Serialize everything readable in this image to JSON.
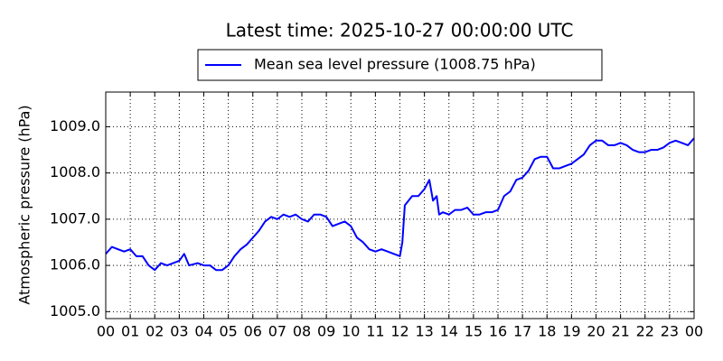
{
  "chart_data": {
    "type": "line",
    "title": "Latest time: 2025-10-27 00:00:00 UTC",
    "y_label": "Atmospheric pressure (hPa)",
    "x": [
      0,
      0.25,
      0.5,
      0.75,
      1,
      1.25,
      1.5,
      1.75,
      2,
      2.25,
      2.5,
      2.75,
      3,
      3.2,
      3.4,
      3.75,
      4,
      4.25,
      4.5,
      4.75,
      5,
      5.25,
      5.5,
      5.75,
      6,
      6.25,
      6.5,
      6.75,
      7,
      7.25,
      7.5,
      7.75,
      8,
      8.25,
      8.5,
      8.75,
      9,
      9.25,
      9.5,
      9.75,
      10,
      10.25,
      10.5,
      10.75,
      11,
      11.25,
      11.5,
      11.75,
      12,
      12.1,
      12.2,
      12.5,
      12.75,
      13,
      13.2,
      13.35,
      13.5,
      13.6,
      13.75,
      14,
      14.25,
      14.5,
      14.75,
      15,
      15.25,
      15.5,
      15.75,
      16,
      16.25,
      16.5,
      16.75,
      17,
      17.25,
      17.5,
      17.75,
      18,
      18.25,
      18.5,
      18.75,
      19,
      19.25,
      19.5,
      19.75,
      20,
      20.25,
      20.5,
      20.75,
      21,
      21.25,
      21.5,
      21.75,
      22,
      22.25,
      22.5,
      22.75,
      23,
      23.25,
      23.5,
      23.75,
      24
    ],
    "series": [
      {
        "name": "Mean sea level pressure (1008.75 hPa)",
        "color": "#0000ff",
        "values": [
          1006.25,
          1006.4,
          1006.35,
          1006.3,
          1006.35,
          1006.2,
          1006.2,
          1006.0,
          1005.9,
          1006.05,
          1006.0,
          1006.05,
          1006.1,
          1006.25,
          1006.0,
          1006.05,
          1006.0,
          1006.0,
          1005.9,
          1005.9,
          1006.0,
          1006.2,
          1006.35,
          1006.45,
          1006.6,
          1006.75,
          1006.95,
          1007.05,
          1007.0,
          1007.1,
          1007.05,
          1007.1,
          1007.0,
          1006.95,
          1007.1,
          1007.1,
          1007.05,
          1006.85,
          1006.9,
          1006.95,
          1006.85,
          1006.6,
          1006.5,
          1006.35,
          1006.3,
          1006.35,
          1006.3,
          1006.25,
          1006.2,
          1006.5,
          1007.3,
          1007.5,
          1007.5,
          1007.65,
          1007.85,
          1007.4,
          1007.5,
          1007.1,
          1007.15,
          1007.1,
          1007.2,
          1007.2,
          1007.25,
          1007.1,
          1007.1,
          1007.15,
          1007.15,
          1007.2,
          1007.5,
          1007.6,
          1007.85,
          1007.9,
          1008.05,
          1008.3,
          1008.35,
          1008.35,
          1008.1,
          1008.1,
          1008.15,
          1008.2,
          1008.3,
          1008.4,
          1008.6,
          1008.7,
          1008.7,
          1008.6,
          1008.6,
          1008.65,
          1008.6,
          1008.5,
          1008.45,
          1008.45,
          1008.5,
          1008.5,
          1008.55,
          1008.65,
          1008.7,
          1008.65,
          1008.6,
          1008.75
        ]
      }
    ],
    "xlim": [
      0,
      24
    ],
    "xticks": [
      {
        "value": 0,
        "label": "00"
      },
      {
        "value": 1,
        "label": "01"
      },
      {
        "value": 2,
        "label": "02"
      },
      {
        "value": 3,
        "label": "03"
      },
      {
        "value": 4,
        "label": "04"
      },
      {
        "value": 5,
        "label": "05"
      },
      {
        "value": 6,
        "label": "06"
      },
      {
        "value": 7,
        "label": "07"
      },
      {
        "value": 8,
        "label": "08"
      },
      {
        "value": 9,
        "label": "09"
      },
      {
        "value": 10,
        "label": "10"
      },
      {
        "value": 11,
        "label": "11"
      },
      {
        "value": 12,
        "label": "12"
      },
      {
        "value": 13,
        "label": "13"
      },
      {
        "value": 14,
        "label": "14"
      },
      {
        "value": 15,
        "label": "15"
      },
      {
        "value": 16,
        "label": "16"
      },
      {
        "value": 17,
        "label": "17"
      },
      {
        "value": 18,
        "label": "18"
      },
      {
        "value": 19,
        "label": "19"
      },
      {
        "value": 20,
        "label": "20"
      },
      {
        "value": 21,
        "label": "21"
      },
      {
        "value": 22,
        "label": "22"
      },
      {
        "value": 23,
        "label": "23"
      },
      {
        "value": 24,
        "label": "00"
      }
    ],
    "ylim": [
      1004.85,
      1009.75
    ],
    "yticks": [
      {
        "value": 1005,
        "label": "1005.0"
      },
      {
        "value": 1006,
        "label": "1006.0"
      },
      {
        "value": 1007,
        "label": "1007.0"
      },
      {
        "value": 1008,
        "label": "1008.0"
      },
      {
        "value": 1009,
        "label": "1009.0"
      }
    ],
    "grid": true,
    "legend": "upper center"
  }
}
